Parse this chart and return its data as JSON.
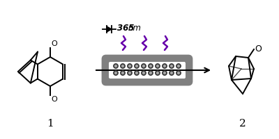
{
  "bg_color": "#ffffff",
  "line_color": "#000000",
  "reactor_gray": "#808080",
  "led_color": "#404040",
  "uv_color": "#6600AA",
  "text_365": "365",
  "text_nm": "nm",
  "label1": "1",
  "label2": "2",
  "fig_width": 4.0,
  "fig_height": 2.0,
  "dpi": 100
}
